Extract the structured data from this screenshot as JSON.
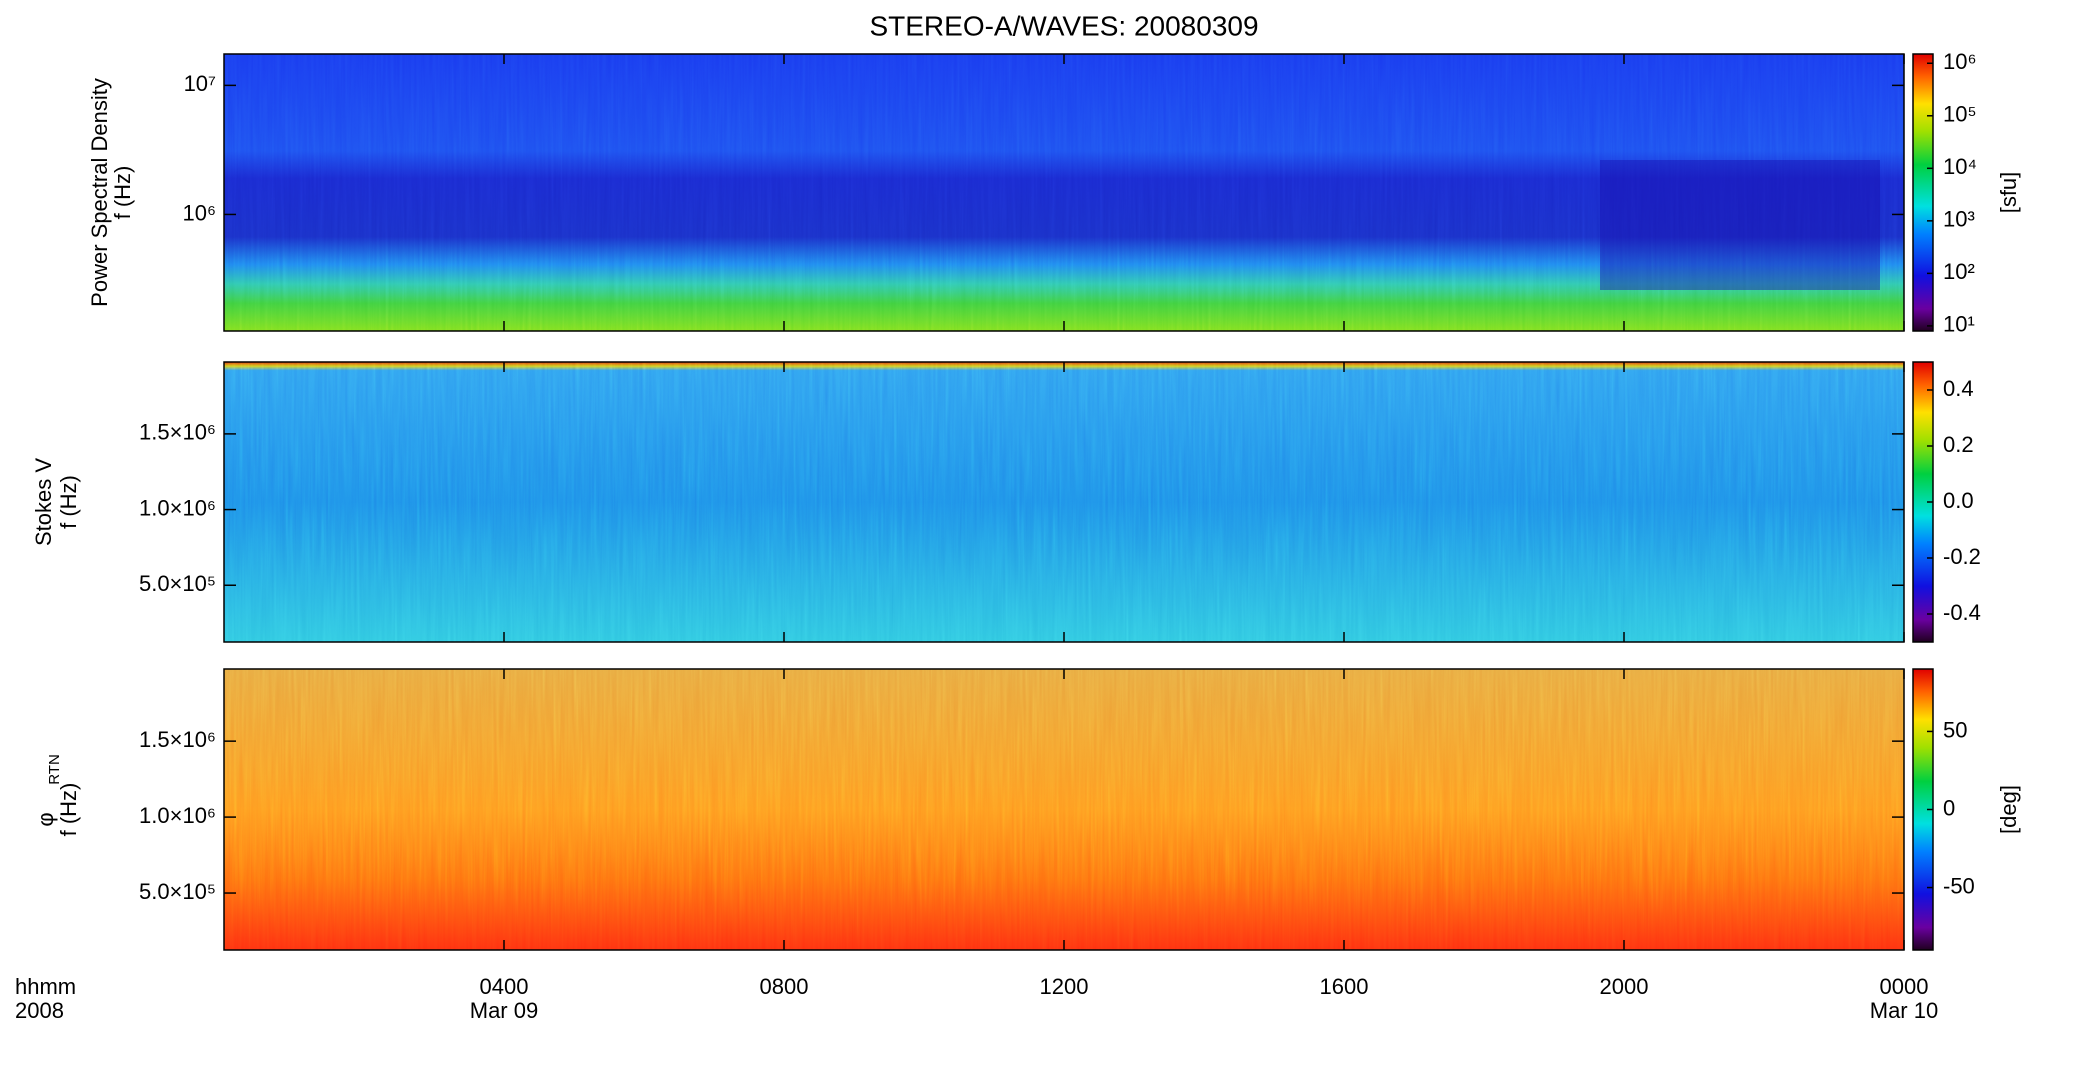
{
  "title": "STEREO-A/WAVES: 20080309",
  "x_axis": {
    "xlim": [
      0,
      24
    ],
    "xticks": [
      {
        "value": 4,
        "label": "0400"
      },
      {
        "value": 8,
        "label": "0800"
      },
      {
        "value": 12,
        "label": "1200"
      },
      {
        "value": 16,
        "label": "1600"
      },
      {
        "value": 20,
        "label": "2000"
      },
      {
        "value": 24,
        "label": "0000"
      }
    ],
    "date_labels": [
      {
        "value": 4,
        "label": "Mar 09"
      },
      {
        "value": 24,
        "label": "Mar 10"
      }
    ],
    "format_label": "hhmm",
    "year_label": "2008"
  },
  "chart_data": [
    {
      "type": "heatmap",
      "ylabel": [
        "Power Spectral Density",
        "f (Hz)"
      ],
      "ylog": true,
      "ylim": [
        125000,
        17500000
      ],
      "yticks": [
        {
          "value": 1000000,
          "label": "10⁶"
        },
        {
          "value": 10000000,
          "label": "10⁷"
        }
      ],
      "clog": true,
      "clim": [
        8,
        1500000
      ],
      "cticks": [
        {
          "value": 10,
          "label": "10¹"
        },
        {
          "value": 100,
          "label": "10²"
        },
        {
          "value": 1000,
          "label": "10³"
        },
        {
          "value": 10000,
          "label": "10⁴"
        },
        {
          "value": 100000,
          "label": "10⁵"
        },
        {
          "value": 1000000,
          "label": "10⁶"
        }
      ],
      "clabel": "[sfu]"
    },
    {
      "type": "heatmap",
      "ylabel": [
        "Stokes V",
        "f (Hz)"
      ],
      "ylog": false,
      "ylim": [
        125000,
        1975000
      ],
      "yticks": [
        {
          "value": 500000,
          "label": "5.0×10⁵"
        },
        {
          "value": 1000000,
          "label": "1.0×10⁶"
        },
        {
          "value": 1500000,
          "label": "1.5×10⁶"
        }
      ],
      "clog": false,
      "clim": [
        -0.5,
        0.5
      ],
      "cticks": [
        -0.4,
        -0.2,
        {
          "value": 0,
          "label": "0.0"
        },
        0.2,
        0.4
      ]
    },
    {
      "type": "heatmap",
      "ylabel": [
        "φ",
        "f (Hz)"
      ],
      "ylabel_subscript": "RTN",
      "ylog": false,
      "ylim": [
        125000,
        1975000
      ],
      "yticks": [
        {
          "value": 500000,
          "label": "5.0×10⁵"
        },
        {
          "value": 1000000,
          "label": "1.0×10⁶"
        },
        {
          "value": 1500000,
          "label": "1.5×10⁶"
        }
      ],
      "clog": false,
      "clim": [
        -90,
        90
      ],
      "cticks": [
        -50,
        0,
        50
      ],
      "clabel": "[deg]"
    }
  ]
}
